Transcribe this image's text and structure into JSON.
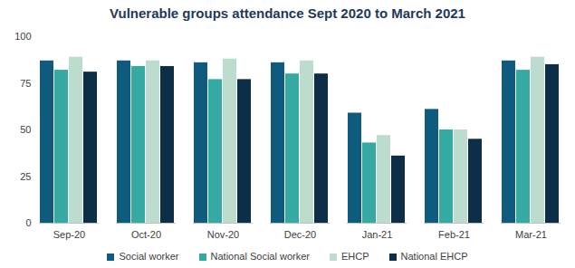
{
  "chart_data": {
    "type": "bar",
    "title": "Vulnerable groups attendance Sept 2020 to March 2021",
    "categories": [
      "Sep-20",
      "Oct-20",
      "Nov-20",
      "Dec-20",
      "Jan-21",
      "Feb-21",
      "Mar-21"
    ],
    "series": [
      {
        "name": "Social worker",
        "color": "#0e5b7e",
        "values": [
          87,
          87,
          86,
          86,
          59,
          61,
          87
        ]
      },
      {
        "name": "National Social worker",
        "color": "#35aaa2",
        "values": [
          82,
          84,
          77,
          80,
          43,
          50,
          82
        ]
      },
      {
        "name": "EHCP",
        "color": "#bcdccd",
        "values": [
          89,
          87,
          88,
          87,
          47,
          50,
          89
        ]
      },
      {
        "name": "National EHCP",
        "color": "#0c2f47",
        "values": [
          81,
          84,
          77,
          80,
          36,
          45,
          85
        ]
      }
    ],
    "ylim": [
      0,
      100
    ],
    "yticks": [
      0,
      25,
      50,
      75,
      100
    ],
    "grid": false,
    "legend": "bottom"
  }
}
